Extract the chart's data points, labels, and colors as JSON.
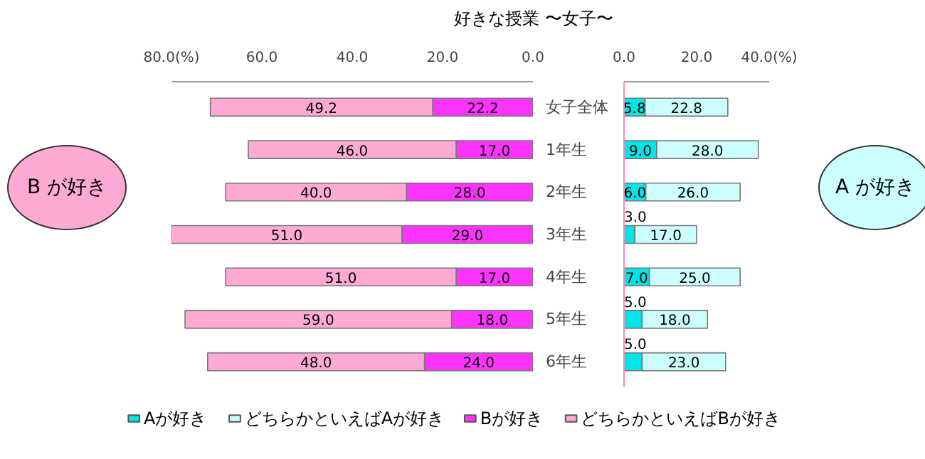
{
  "chart_data": [
    {
      "type": "bar",
      "orientation": "horizontal",
      "stacked": true,
      "title": "好きな授業 〜女子〜",
      "categories": [
        "女子全体",
        "1年生",
        "2年生",
        "3年生",
        "4年生",
        "5年生",
        "6年生"
      ],
      "series": [
        {
          "name": "Bが好き",
          "color": "#ff33ff",
          "values": [
            22.2,
            17.0,
            28.0,
            29.0,
            17.0,
            18.0,
            24.0
          ],
          "value_labels": [
            "22.2",
            "17.0",
            "28.0",
            "29.0",
            "17.0",
            "18.0",
            "24.0"
          ]
        },
        {
          "name": "どちらかといえばBが好き",
          "color": "#ffaad4",
          "values": [
            49.2,
            46.0,
            40.0,
            51.0,
            51.0,
            59.0,
            48.0
          ],
          "value_labels": [
            "49.2",
            "46.0",
            "40.0",
            "51.0",
            "51.0",
            "59.0",
            "48.0"
          ]
        }
      ],
      "xlim": [
        80,
        0
      ],
      "xticks": [
        {
          "value": 80,
          "label": "80.0(%)"
        },
        {
          "value": 60,
          "label": "60.0"
        },
        {
          "value": 40,
          "label": "40.0"
        },
        {
          "value": 20,
          "label": "20.0"
        },
        {
          "value": 0,
          "label": "0.0"
        }
      ],
      "grid": false,
      "legend": "bottom",
      "annotations": [
        "B が好き"
      ]
    },
    {
      "type": "bar",
      "orientation": "horizontal",
      "stacked": true,
      "categories": [
        null,
        null,
        null,
        null,
        null,
        null,
        null
      ],
      "series": [
        {
          "name": "Aが好き",
          "color": "#00e5e5",
          "values": [
            5.8,
            9.0,
            6.0,
            3.0,
            7.0,
            5.0,
            5.0
          ],
          "value_labels": [
            "5.8",
            "9.0",
            "6.0",
            "3.0",
            "7.0",
            "5.0",
            "5.0"
          ]
        },
        {
          "name": "どちらかといえばAが好き",
          "color": "#ccffff",
          "values": [
            22.8,
            28.0,
            26.0,
            17.0,
            25.0,
            18.0,
            23.0
          ],
          "value_labels": [
            "22.8",
            "28.0",
            "26.0",
            "17.0",
            "25.0",
            "18.0",
            "23.0"
          ]
        }
      ],
      "xlim": [
        0,
        40
      ],
      "xticks": [
        {
          "value": 0,
          "label": "0.0"
        },
        {
          "value": 20,
          "label": "20.0"
        },
        {
          "value": 40,
          "label": "40.0(%)"
        }
      ],
      "tick_labels": "x",
      "grid": false,
      "legend": "bottom",
      "annotations": [
        "A が好き"
      ]
    }
  ]
}
